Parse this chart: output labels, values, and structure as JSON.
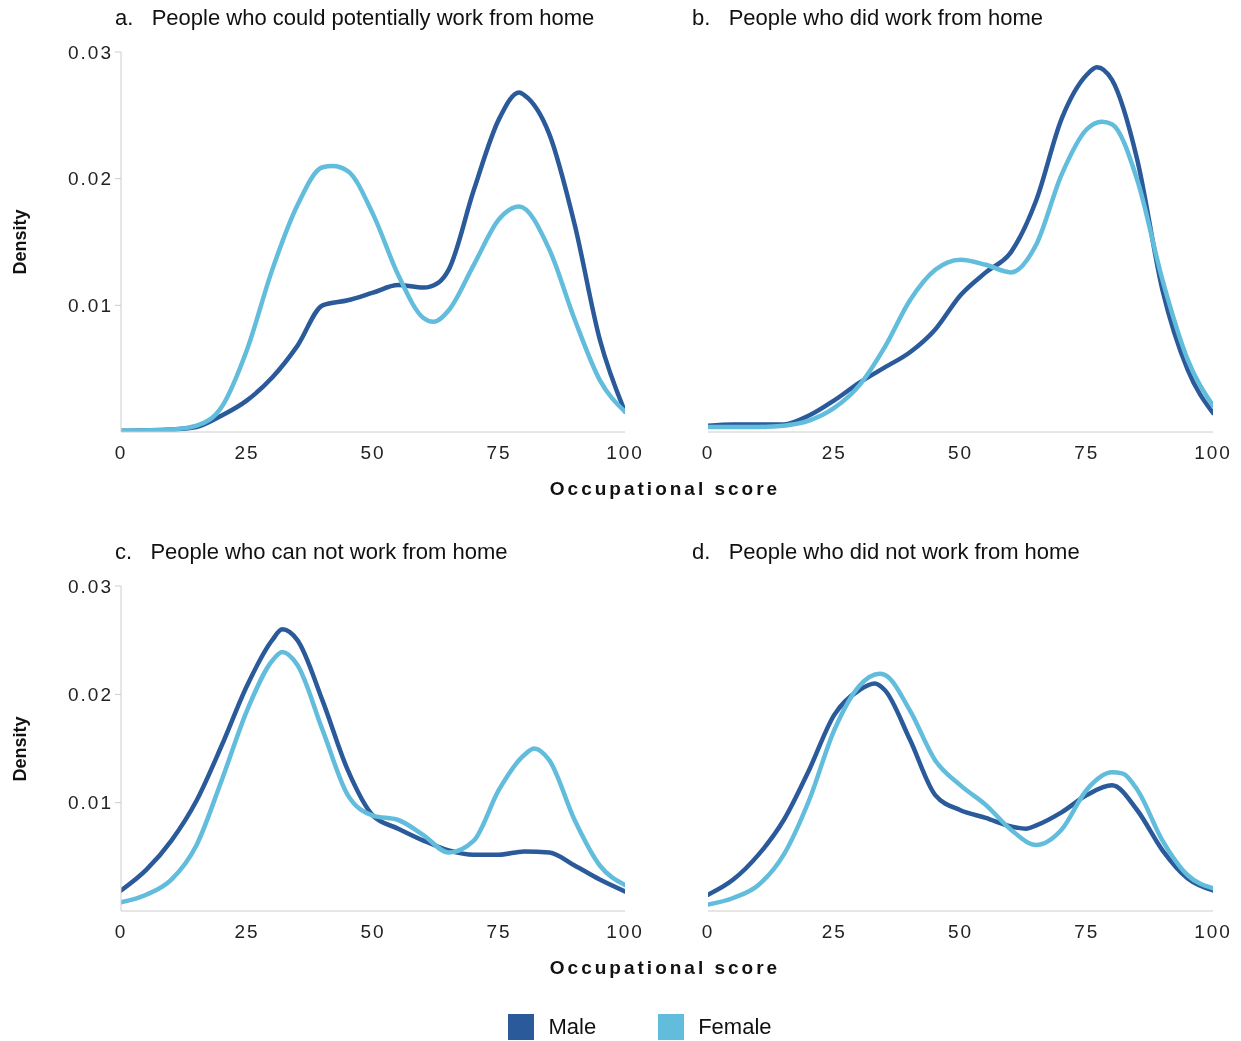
{
  "chart_data": [
    {
      "type": "line",
      "title": "a.   People who could potentially work from home",
      "xlabel": "Occupational score",
      "ylabel": "Density",
      "xlim": [
        0,
        100
      ],
      "xticks": [
        0,
        25,
        50,
        75,
        100
      ],
      "ylim": [
        0,
        0.03
      ],
      "yticks": [
        0.01,
        0.02,
        0.03
      ],
      "grid": false,
      "marker": "none",
      "line_style": "solid",
      "legend": "bottom",
      "series": [
        {
          "name": "Male",
          "color": "#2a5a9a",
          "x": [
            0,
            10,
            15,
            20,
            25,
            30,
            35,
            40,
            45,
            50,
            55,
            60,
            63,
            65,
            70,
            75,
            79,
            80,
            85,
            90,
            95,
            100
          ],
          "values": [
            0.0001,
            0.0002,
            0.0004,
            0.0013,
            0.0025,
            0.0043,
            0.0068,
            0.01,
            0.0104,
            0.011,
            0.0116,
            0.0114,
            0.0118,
            0.0128,
            0.0191,
            0.0247,
            0.0268,
            0.0266,
            0.0235,
            0.0164,
            0.0073,
            0.0016
          ]
        },
        {
          "name": "Female",
          "color": "#62bcdc",
          "x": [
            0,
            10,
            15,
            20,
            25,
            30,
            35,
            40,
            42,
            45,
            50,
            55,
            60,
            62,
            65,
            70,
            75,
            79,
            85,
            90,
            95,
            100
          ],
          "values": [
            0.0001,
            0.0002,
            0.0005,
            0.002,
            0.0065,
            0.0128,
            0.0179,
            0.0209,
            0.021,
            0.0206,
            0.0172,
            0.0124,
            0.009,
            0.0087,
            0.0096,
            0.0132,
            0.0168,
            0.0178,
            0.0144,
            0.0089,
            0.0041,
            0.0016
          ]
        }
      ]
    },
    {
      "type": "line",
      "title": "b.   People who did work from home",
      "xlim": [
        0,
        100
      ],
      "xticks": [
        0,
        25,
        50,
        75,
        100
      ],
      "ylim": [
        0,
        0.03
      ],
      "tick_labels": "x",
      "grid": false,
      "marker": "none",
      "line_style": "solid",
      "series": [
        {
          "color": "#2a5a9a",
          "x": [
            0,
            5,
            10,
            15,
            20,
            25,
            30,
            35,
            40,
            45,
            50,
            55,
            60,
            65,
            70,
            75,
            77,
            80,
            85,
            90,
            95,
            100
          ],
          "values": [
            0.0005,
            0.0006,
            0.0006,
            0.0006,
            0.0013,
            0.0025,
            0.0039,
            0.0051,
            0.0063,
            0.0081,
            0.0108,
            0.0126,
            0.0142,
            0.0183,
            0.0247,
            0.0282,
            0.0288,
            0.0278,
            0.0215,
            0.0112,
            0.0049,
            0.0015
          ]
        },
        {
          "color": "#62bcdc",
          "x": [
            0,
            10,
            15,
            20,
            25,
            30,
            35,
            40,
            45,
            50,
            55,
            60,
            65,
            70,
            75,
            78,
            80,
            85,
            90,
            95,
            100
          ],
          "values": [
            0.0004,
            0.0004,
            0.0005,
            0.0009,
            0.0019,
            0.0037,
            0.0067,
            0.0104,
            0.0128,
            0.0136,
            0.0132,
            0.0126,
            0.0148,
            0.0203,
            0.0239,
            0.0245,
            0.0243,
            0.0199,
            0.012,
            0.0057,
            0.0021
          ]
        }
      ]
    },
    {
      "type": "line",
      "title": "c.   People who can not work from home",
      "xlabel": "Occupational score",
      "ylabel": "Density",
      "xlim": [
        0,
        100
      ],
      "xticks": [
        0,
        25,
        50,
        75,
        100
      ],
      "ylim": [
        0,
        0.03
      ],
      "yticks": [
        0.01,
        0.02,
        0.03
      ],
      "grid": false,
      "marker": "none",
      "line_style": "solid",
      "series": [
        {
          "color": "#2a5a9a",
          "x": [
            0,
            5,
            10,
            15,
            20,
            25,
            30,
            32,
            35,
            40,
            45,
            50,
            55,
            60,
            65,
            70,
            75,
            80,
            85,
            90,
            95,
            100
          ],
          "values": [
            0.0019,
            0.0038,
            0.0065,
            0.0102,
            0.0153,
            0.0208,
            0.025,
            0.026,
            0.025,
            0.0194,
            0.013,
            0.0088,
            0.0076,
            0.0065,
            0.0056,
            0.0052,
            0.0052,
            0.0055,
            0.0054,
            0.0042,
            0.0029,
            0.0018
          ]
        },
        {
          "color": "#62bcdc",
          "x": [
            0,
            5,
            10,
            15,
            20,
            25,
            30,
            32,
            35,
            40,
            45,
            50,
            55,
            60,
            65,
            70,
            75,
            80,
            82,
            85,
            90,
            95,
            100
          ],
          "values": [
            0.0008,
            0.0015,
            0.0029,
            0.0061,
            0.0121,
            0.0185,
            0.0231,
            0.0239,
            0.0227,
            0.0167,
            0.0107,
            0.0088,
            0.0084,
            0.007,
            0.0054,
            0.0065,
            0.0112,
            0.0144,
            0.015,
            0.0139,
            0.0084,
            0.0042,
            0.0024
          ]
        }
      ]
    },
    {
      "type": "line",
      "title": "d.   People who did not work from home",
      "xlim": [
        0,
        100
      ],
      "xticks": [
        0,
        25,
        50,
        75,
        100
      ],
      "ylim": [
        0,
        0.03
      ],
      "tick_labels": "x",
      "grid": false,
      "marker": "none",
      "line_style": "solid",
      "series": [
        {
          "color": "#2a5a9a",
          "x": [
            0,
            5,
            10,
            15,
            20,
            25,
            30,
            33,
            35,
            40,
            45,
            50,
            55,
            60,
            63,
            65,
            70,
            75,
            80,
            85,
            90,
            95,
            100
          ],
          "values": [
            0.0015,
            0.0029,
            0.0052,
            0.0084,
            0.013,
            0.0181,
            0.0204,
            0.021,
            0.0204,
            0.0158,
            0.0107,
            0.0093,
            0.0086,
            0.0078,
            0.0076,
            0.0079,
            0.0091,
            0.0107,
            0.0116,
            0.0093,
            0.0056,
            0.003,
            0.0019
          ]
        },
        {
          "color": "#62bcdc",
          "x": [
            0,
            5,
            10,
            15,
            20,
            25,
            30,
            34,
            35,
            40,
            45,
            50,
            55,
            60,
            65,
            70,
            75,
            80,
            82,
            85,
            90,
            95,
            100
          ],
          "values": [
            0.0006,
            0.0012,
            0.0024,
            0.0052,
            0.0102,
            0.0167,
            0.0208,
            0.0219,
            0.0218,
            0.0185,
            0.0139,
            0.0116,
            0.0098,
            0.0075,
            0.0061,
            0.0075,
            0.0112,
            0.0128,
            0.0127,
            0.0112,
            0.0065,
            0.0033,
            0.0021
          ]
        }
      ]
    }
  ]
}
